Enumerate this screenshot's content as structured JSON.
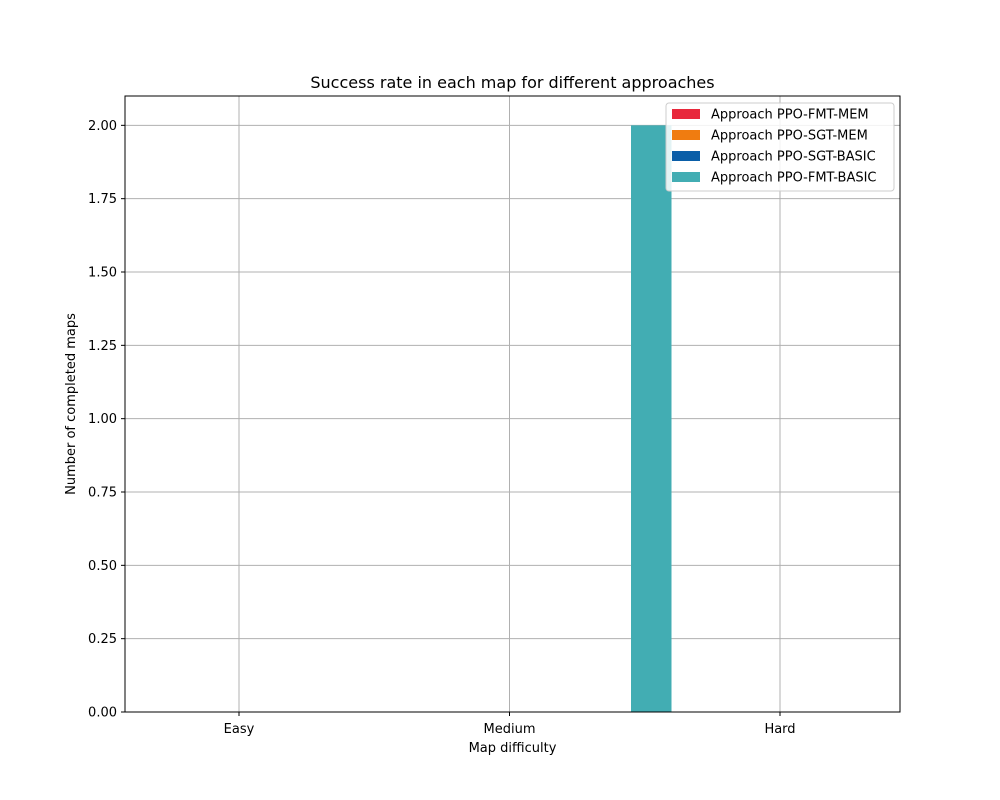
{
  "chart_data": {
    "type": "bar",
    "title": "Success rate in each map for different approaches",
    "xlabel": "Map difficulty",
    "ylabel": "Number of completed maps",
    "categories": [
      "Easy",
      "Medium",
      "Hard"
    ],
    "ylim": [
      0,
      2.1
    ],
    "yticks": [
      "0.00",
      "0.25",
      "0.50",
      "0.75",
      "1.00",
      "1.25",
      "1.50",
      "1.75",
      "2.00"
    ],
    "grid": true,
    "legend_position": "top-right",
    "series": [
      {
        "name": "Approach PPO-FMT-MEM",
        "color": "#e8283c",
        "values": [
          0,
          0,
          0
        ]
      },
      {
        "name": "Approach PPO-SGT-MEM",
        "color": "#f07c10",
        "values": [
          0,
          0,
          0
        ]
      },
      {
        "name": "Approach PPO-SGT-BASIC",
        "color": "#0a5ea8",
        "values": [
          0,
          0,
          0
        ]
      },
      {
        "name": "Approach PPO-FMT-BASIC",
        "color": "#42adb3",
        "values": [
          0,
          2,
          0
        ]
      }
    ]
  }
}
